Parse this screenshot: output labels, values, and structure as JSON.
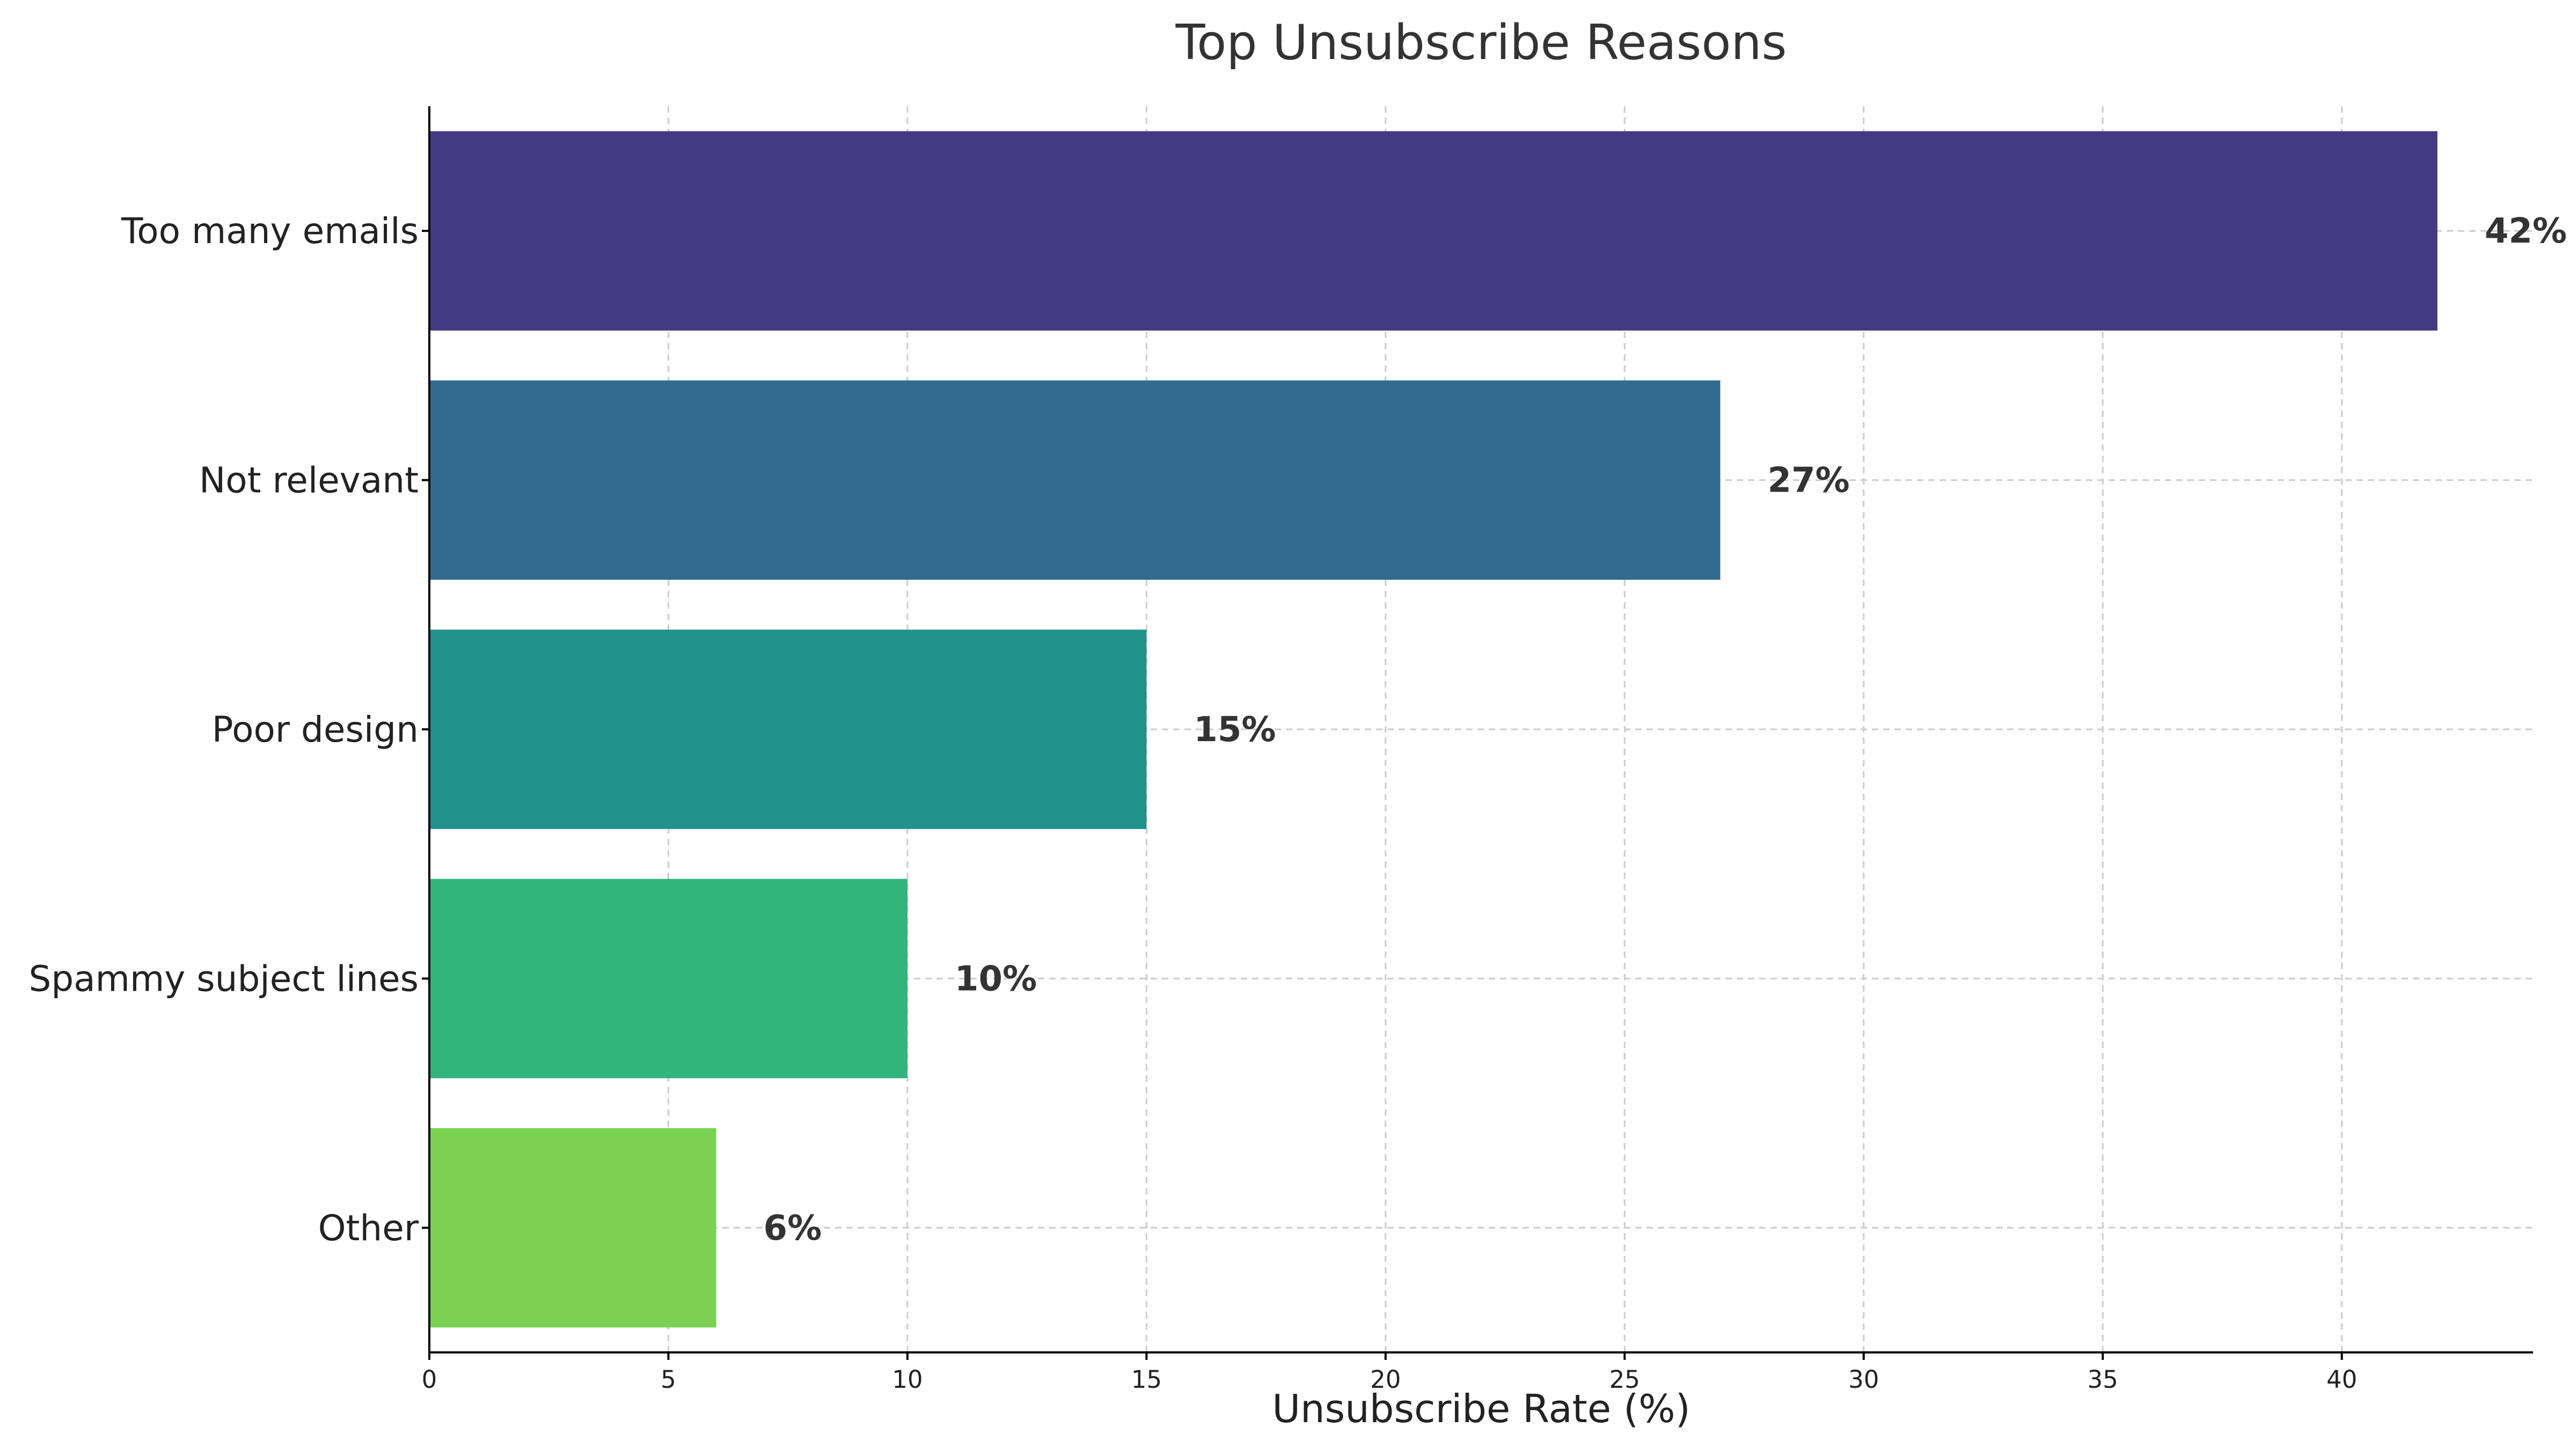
{
  "chart_data": {
    "type": "bar",
    "orientation": "horizontal",
    "title": "Top Unsubscribe Reasons",
    "xlabel": "Unsubscribe Rate (%)",
    "ylabel": "",
    "categories": [
      "Too many emails",
      "Not relevant",
      "Poor design",
      "Spammy subject lines",
      "Other"
    ],
    "values": [
      42,
      27,
      15,
      10,
      6
    ],
    "value_labels": [
      "42%",
      "27%",
      "15%",
      "10%",
      "6%"
    ],
    "colors": [
      "#443a83",
      "#316c8e",
      "#21918c",
      "#31b57b",
      "#7ad151"
    ],
    "xlim": [
      0,
      44
    ],
    "xticks": [
      0,
      5,
      10,
      15,
      20,
      25,
      30,
      35,
      40
    ],
    "grid": true,
    "legend": "none"
  }
}
